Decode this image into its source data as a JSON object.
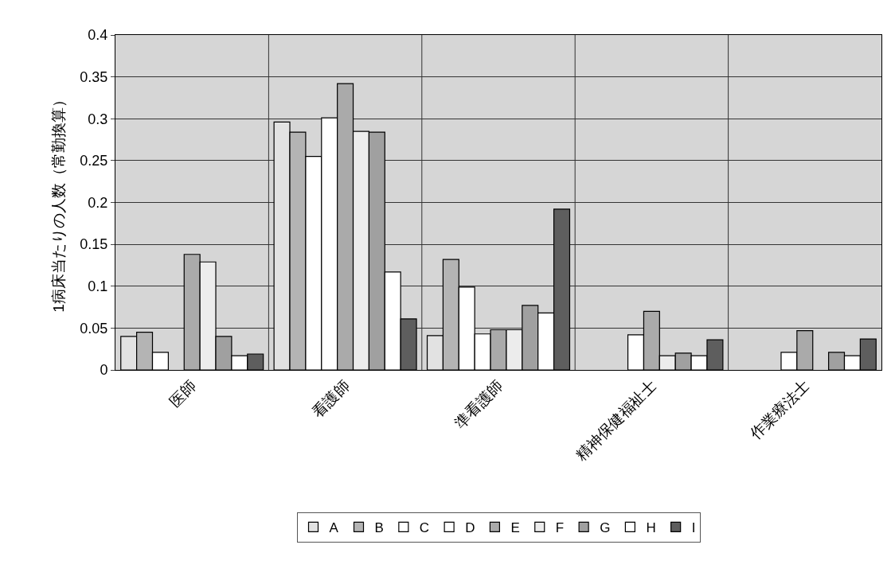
{
  "chart_data": {
    "type": "bar",
    "ylabel": "1病床当たりの人数（常勤換算）",
    "categories": [
      "医師",
      "看護師",
      "準看護師",
      "精神保健福祉士",
      "作業療法士"
    ],
    "series": [
      {
        "name": "A",
        "color": "#e2e2e2",
        "values": [
          0.04,
          0.296,
          0.041,
          null,
          null
        ]
      },
      {
        "name": "B",
        "color": "#b4b4b4",
        "values": [
          0.045,
          0.284,
          0.132,
          null,
          null
        ]
      },
      {
        "name": "C",
        "color": "#ffffff",
        "values": [
          0.021,
          0.255,
          0.099,
          null,
          null
        ]
      },
      {
        "name": "D",
        "color": "#ffffff",
        "values": [
          null,
          0.301,
          0.043,
          0.042,
          0.021
        ]
      },
      {
        "name": "E",
        "color": "#aaaaaa",
        "values": [
          0.138,
          0.342,
          0.048,
          0.07,
          0.047
        ]
      },
      {
        "name": "F",
        "color": "#ececec",
        "values": [
          0.129,
          0.285,
          0.048,
          0.017,
          null
        ]
      },
      {
        "name": "G",
        "color": "#a0a0a0",
        "values": [
          0.04,
          0.284,
          0.077,
          0.02,
          0.021
        ]
      },
      {
        "name": "H",
        "color": "#ffffff",
        "values": [
          0.017,
          0.117,
          0.068,
          0.017,
          0.017
        ]
      },
      {
        "name": "I",
        "color": "#5e5e5e",
        "values": [
          0.019,
          0.061,
          0.192,
          0.036,
          0.037
        ]
      }
    ],
    "ylim": [
      0,
      0.4
    ],
    "yticks": [
      0,
      0.05,
      0.1,
      0.15,
      0.2,
      0.25,
      0.3,
      0.35,
      0.4
    ],
    "grid": true,
    "legend": "bottom"
  }
}
